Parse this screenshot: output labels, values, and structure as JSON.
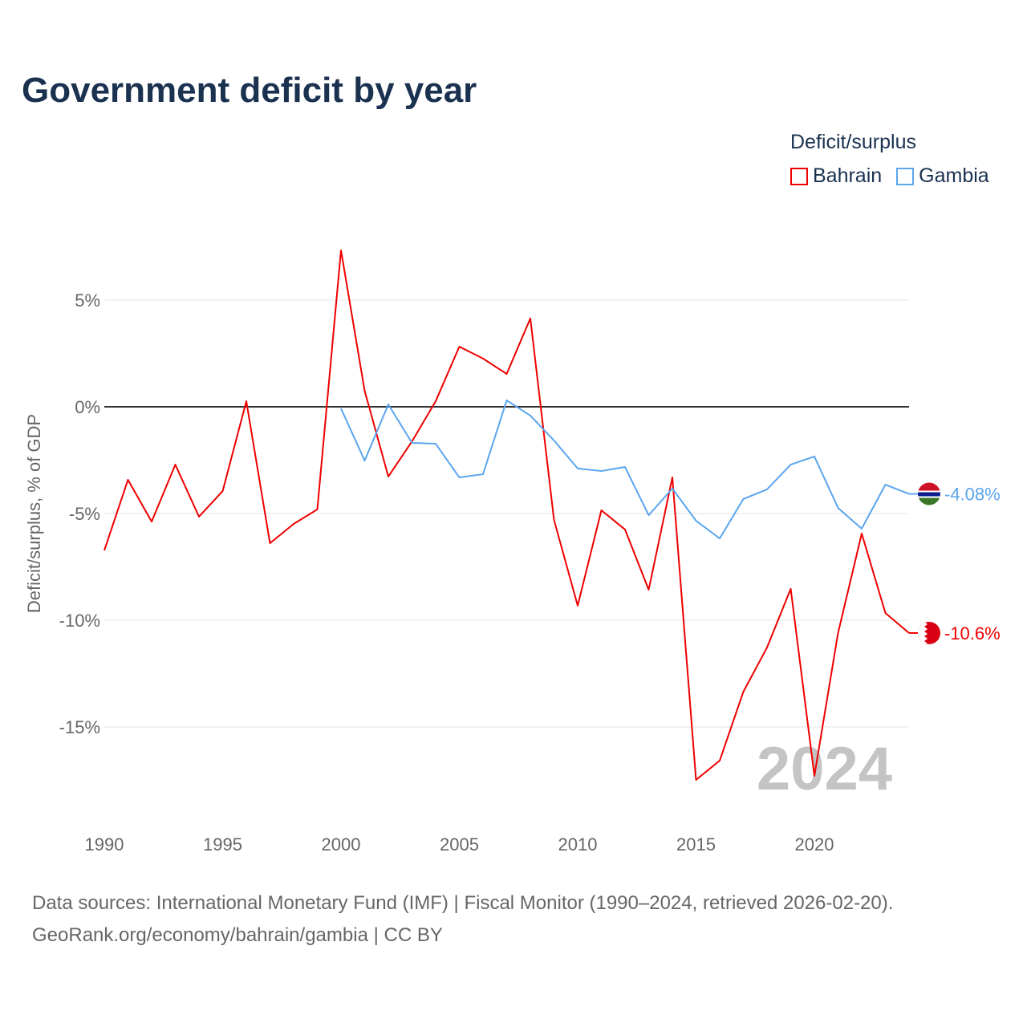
{
  "title": "Government deficit by year",
  "legend": {
    "title": "Deficit/surplus",
    "items": [
      {
        "name": "Bahrain",
        "color": "#ee0000"
      },
      {
        "name": "Gambia",
        "color": "#5aa5ee"
      }
    ]
  },
  "footer": {
    "line1": "Data sources: International Monetary Fund (IMF) | Fiscal Monitor (1990–2024, retrieved 2026-02-20).",
    "line2": "GeoRank.org/economy/bahrain/gambia | CC BY"
  },
  "chart_data": {
    "type": "line",
    "title": "Government deficit by year",
    "ylabel": "Deficit/surplus, % of GDP",
    "xlabel": "",
    "xlim": [
      1990,
      2024
    ],
    "ylim": [
      -19,
      8
    ],
    "x_ticks": [
      1990,
      1995,
      2000,
      2005,
      2010,
      2015,
      2020
    ],
    "y_ticks": [
      {
        "v": 5,
        "label": "5%"
      },
      {
        "v": 0,
        "label": "0%"
      },
      {
        "v": -5,
        "label": "-5%"
      },
      {
        "v": -10,
        "label": "-10%"
      },
      {
        "v": -15,
        "label": "-15%"
      }
    ],
    "year_watermark": "2024",
    "series": [
      {
        "name": "Bahrain",
        "color": "#ee0000",
        "end_label": "-10.6%",
        "start": 1990,
        "values": [
          -6.73,
          -3.42,
          -5.38,
          -2.71,
          -5.15,
          -3.95,
          0.26,
          -6.39,
          -5.49,
          -4.81,
          7.33,
          0.75,
          -3.27,
          -1.62,
          0.26,
          2.82,
          2.26,
          1.54,
          4.14,
          -5.3,
          -9.32,
          -4.85,
          -5.75,
          -8.57,
          -3.31,
          -17.48,
          -16.58,
          -13.35,
          -11.28,
          -8.53,
          -17.29,
          -10.6,
          -5.94,
          -9.66,
          -10.6
        ]
      },
      {
        "name": "Gambia",
        "color": "#5aa5ee",
        "end_label": "-4.08%",
        "start": 2000,
        "values": [
          -0.08,
          -2.52,
          0.11,
          -1.69,
          -1.73,
          -3.31,
          -3.16,
          0.3,
          -0.41,
          -1.58,
          -2.89,
          -3.01,
          -2.82,
          -5.08,
          -3.83,
          -5.34,
          -6.17,
          -4.32,
          -3.87,
          -2.71,
          -2.33,
          -4.74,
          -5.71,
          -3.65,
          -4.08
        ]
      }
    ]
  }
}
